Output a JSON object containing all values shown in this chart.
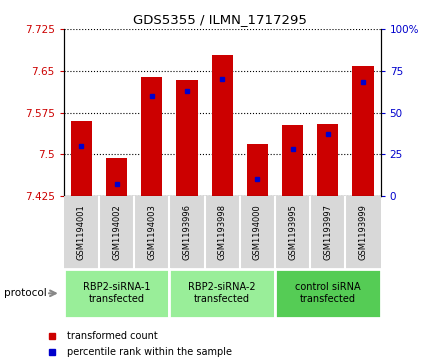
{
  "title": "GDS5355 / ILMN_1717295",
  "samples": [
    "GSM1194001",
    "GSM1194002",
    "GSM1194003",
    "GSM1193996",
    "GSM1193998",
    "GSM1194000",
    "GSM1193995",
    "GSM1193997",
    "GSM1193999"
  ],
  "transformed_counts": [
    7.56,
    7.493,
    7.638,
    7.634,
    7.678,
    7.518,
    7.553,
    7.555,
    7.658
  ],
  "percentile_ranks": [
    30,
    7,
    60,
    63,
    70,
    10,
    28,
    37,
    68
  ],
  "ylim": [
    7.425,
    7.725
  ],
  "yticks": [
    7.425,
    7.5,
    7.575,
    7.65,
    7.725
  ],
  "right_yticks": [
    0,
    25,
    50,
    75,
    100
  ],
  "bar_color": "#cc0000",
  "marker_color": "#0000cc",
  "bar_width": 0.6,
  "groups": [
    {
      "label": "RBP2-siRNA-1\ntransfected",
      "start": 0,
      "end": 3,
      "color": "#99ee99"
    },
    {
      "label": "RBP2-siRNA-2\ntransfected",
      "start": 3,
      "end": 6,
      "color": "#99ee99"
    },
    {
      "label": "control siRNA\ntransfected",
      "start": 6,
      "end": 9,
      "color": "#55cc55"
    }
  ],
  "legend_entries": [
    {
      "label": "transformed count",
      "color": "#cc0000"
    },
    {
      "label": "percentile rank within the sample",
      "color": "#0000cc"
    }
  ],
  "protocol_label": "protocol",
  "bg_color": "#ffffff",
  "plot_bg": "#ffffff",
  "sample_box_color": "#d8d8d8"
}
